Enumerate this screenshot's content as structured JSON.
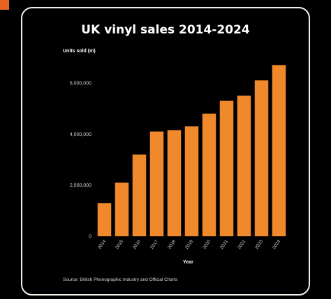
{
  "chart_data": {
    "type": "bar",
    "title": "UK vinyl sales 2014-2024",
    "ylabel": "Units sold (m)",
    "xlabel": "Year",
    "categories": [
      "2014",
      "2015",
      "2016",
      "2017",
      "2018",
      "2019",
      "2020",
      "2021",
      "2022",
      "2023",
      "2024"
    ],
    "values": [
      1300000,
      2100000,
      3200000,
      4100000,
      4150000,
      4300000,
      4800000,
      5300000,
      5500000,
      6100000,
      6700000
    ],
    "yticks": [
      "0",
      "2,000,000",
      "4,000,000",
      "6,000,000"
    ],
    "ylim": [
      0,
      7500000
    ],
    "grid": false,
    "bar_color": "#f0892c",
    "source": "Source: British Phonographic Industry and Official Charts"
  },
  "colors": {
    "background": "#000000",
    "card_border": "#f2efe8",
    "accent": "#e8651f",
    "text": "#ffffff"
  }
}
